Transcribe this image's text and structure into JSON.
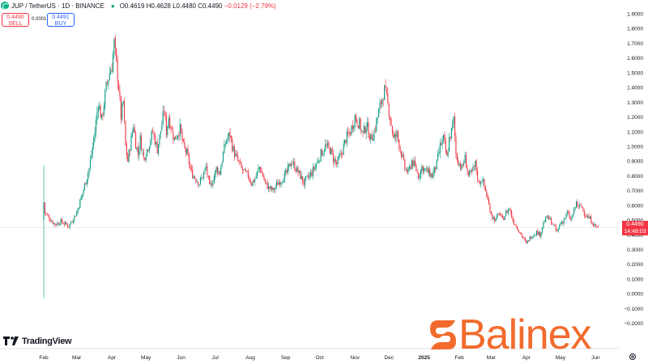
{
  "header": {
    "symbol": "JUP / TetherUS · 1D · BINANCE",
    "ohlc_prefix": "O0.4619 H0.4628 L0.4480 C0.4490",
    "change": "−0.0129 (−2.79%)",
    "market_dot": "●"
  },
  "trade": {
    "sell_price": "0.4490",
    "sell_label": "SELL",
    "spread": "0.0001",
    "buy_price": "0.4491",
    "buy_label": "BUY"
  },
  "price_tag": {
    "price": "0.4490",
    "countdown": "14:48:03"
  },
  "branding": {
    "tradingview": "TradingView",
    "balinex": "Balinex"
  },
  "colors": {
    "up": "#089981",
    "down": "#f23645",
    "brand": "#f26b2d",
    "blue": "#2962ff"
  },
  "icons": {
    "logo": "jup-coin-icon",
    "settings": "gear-icon",
    "tv": "tradingview-logo-icon",
    "balinex": "balinex-logo-icon"
  },
  "chart_data": {
    "type": "candlestick",
    "title": "JUP / TetherUS · 1D · BINANCE",
    "ylim": [
      -0.2,
      1.9
    ],
    "y_ticks": [
      1.9,
      1.8,
      1.7,
      1.6,
      1.5,
      1.4,
      1.3,
      1.2,
      1.1,
      1.0,
      0.9,
      0.8,
      0.7,
      0.6,
      0.5,
      0.4,
      0.3,
      0.2,
      0.1,
      0.0,
      -0.1,
      -0.2
    ],
    "y_tick_labels": [
      "1.9000",
      "1.8000",
      "1.7000",
      "1.6000",
      "1.5000",
      "1.4000",
      "1.3000",
      "1.2000",
      "1.1000",
      "1.0000",
      "0.9000",
      "0.8000",
      "0.7000",
      "0.6000",
      "0.5000",
      "0.4000",
      "0.3000",
      "0.2000",
      "0.1000",
      "0.0000",
      "−0.1000",
      "−0.2000"
    ],
    "x_ticks": [
      {
        "label": "Feb",
        "day": 0
      },
      {
        "label": "Mar",
        "day": 29
      },
      {
        "label": "Apr",
        "day": 60
      },
      {
        "label": "May",
        "day": 90
      },
      {
        "label": "Jun",
        "day": 121
      },
      {
        "label": "Jul",
        "day": 151
      },
      {
        "label": "Aug",
        "day": 182
      },
      {
        "label": "Sep",
        "day": 213
      },
      {
        "label": "Oct",
        "day": 243
      },
      {
        "label": "Nov",
        "day": 274
      },
      {
        "label": "Dec",
        "day": 304
      },
      {
        "label": "2025",
        "day": 335
      },
      {
        "label": "Feb",
        "day": 366
      },
      {
        "label": "Mar",
        "day": 394
      },
      {
        "label": "Apr",
        "day": 425
      },
      {
        "label": "May",
        "day": 455
      },
      {
        "label": "Jun",
        "day": 486
      }
    ],
    "last_price": 0.449,
    "close_anchors": [
      [
        0,
        0.62
      ],
      [
        1,
        0.55
      ],
      [
        4,
        0.52
      ],
      [
        10,
        0.47
      ],
      [
        15,
        0.49
      ],
      [
        22,
        0.46
      ],
      [
        29,
        0.55
      ],
      [
        34,
        0.68
      ],
      [
        40,
        0.85
      ],
      [
        45,
        1.1
      ],
      [
        48,
        1.3
      ],
      [
        51,
        1.18
      ],
      [
        55,
        1.4
      ],
      [
        58,
        1.5
      ],
      [
        60,
        1.55
      ],
      [
        62,
        1.7
      ],
      [
        64,
        1.55
      ],
      [
        66,
        1.4
      ],
      [
        68,
        1.2
      ],
      [
        70,
        1.3
      ],
      [
        72,
        1.0
      ],
      [
        74,
        0.9
      ],
      [
        76,
        1.0
      ],
      [
        79,
        1.15
      ],
      [
        81,
        1.02
      ],
      [
        83,
        0.95
      ],
      [
        85,
        1.05
      ],
      [
        88,
        0.92
      ],
      [
        92,
        1.0
      ],
      [
        96,
        1.1
      ],
      [
        100,
        0.98
      ],
      [
        104,
        1.15
      ],
      [
        106,
        1.25
      ],
      [
        108,
        1.1
      ],
      [
        110,
        1.2
      ],
      [
        113,
        1.1
      ],
      [
        115,
        1.05
      ],
      [
        120,
        1.12
      ],
      [
        123,
        1.0
      ],
      [
        126,
        0.95
      ],
      [
        130,
        0.82
      ],
      [
        134,
        0.78
      ],
      [
        137,
        0.75
      ],
      [
        140,
        0.8
      ],
      [
        143,
        0.86
      ],
      [
        146,
        0.72
      ],
      [
        149,
        0.77
      ],
      [
        152,
        0.85
      ],
      [
        155,
        0.82
      ],
      [
        158,
        0.95
      ],
      [
        161,
        1.05
      ],
      [
        164,
        1.08
      ],
      [
        166,
        1.0
      ],
      [
        168,
        0.95
      ],
      [
        171,
        0.9
      ],
      [
        174,
        0.85
      ],
      [
        177,
        0.82
      ],
      [
        180,
        0.8
      ],
      [
        183,
        0.75
      ],
      [
        186,
        0.78
      ],
      [
        190,
        0.86
      ],
      [
        193,
        0.8
      ],
      [
        195,
        0.75
      ],
      [
        198,
        0.72
      ],
      [
        202,
        0.7
      ],
      [
        206,
        0.75
      ],
      [
        210,
        0.78
      ],
      [
        214,
        0.82
      ],
      [
        218,
        0.9
      ],
      [
        222,
        0.85
      ],
      [
        226,
        0.8
      ],
      [
        229,
        0.75
      ],
      [
        232,
        0.78
      ],
      [
        236,
        0.82
      ],
      [
        240,
        0.88
      ],
      [
        244,
        0.95
      ],
      [
        248,
        1.0
      ],
      [
        252,
        0.98
      ],
      [
        255,
        0.92
      ],
      [
        258,
        0.88
      ],
      [
        262,
        0.95
      ],
      [
        266,
        1.05
      ],
      [
        270,
        1.1
      ],
      [
        274,
        1.2
      ],
      [
        278,
        1.15
      ],
      [
        281,
        1.08
      ],
      [
        284,
        1.15
      ],
      [
        288,
        1.05
      ],
      [
        291,
        1.1
      ],
      [
        294,
        1.2
      ],
      [
        297,
        1.3
      ],
      [
        300,
        1.38
      ],
      [
        302,
        1.32
      ],
      [
        305,
        1.2
      ],
      [
        308,
        1.05
      ],
      [
        311,
        1.08
      ],
      [
        315,
        0.95
      ],
      [
        318,
        0.85
      ],
      [
        321,
        0.82
      ],
      [
        324,
        0.9
      ],
      [
        327,
        0.86
      ],
      [
        330,
        0.8
      ],
      [
        333,
        0.86
      ],
      [
        336,
        0.84
      ],
      [
        339,
        0.82
      ],
      [
        342,
        0.8
      ],
      [
        346,
        0.88
      ],
      [
        349,
        1.0
      ],
      [
        352,
        1.05
      ],
      [
        355,
        0.92
      ],
      [
        357,
        1.05
      ],
      [
        359,
        1.1
      ],
      [
        361,
        1.18
      ],
      [
        363,
        0.95
      ],
      [
        365,
        0.9
      ],
      [
        368,
        0.85
      ],
      [
        371,
        0.92
      ],
      [
        374,
        0.8
      ],
      [
        377,
        0.82
      ],
      [
        380,
        0.88
      ],
      [
        383,
        0.75
      ],
      [
        386,
        0.78
      ],
      [
        389,
        0.7
      ],
      [
        392,
        0.6
      ],
      [
        395,
        0.52
      ],
      [
        398,
        0.5
      ],
      [
        401,
        0.55
      ],
      [
        404,
        0.5
      ],
      [
        407,
        0.55
      ],
      [
        410,
        0.58
      ],
      [
        413,
        0.5
      ],
      [
        416,
        0.46
      ],
      [
        419,
        0.42
      ],
      [
        422,
        0.38
      ],
      [
        425,
        0.34
      ],
      [
        428,
        0.38
      ],
      [
        431,
        0.4
      ],
      [
        434,
        0.42
      ],
      [
        437,
        0.4
      ],
      [
        440,
        0.48
      ],
      [
        443,
        0.52
      ],
      [
        446,
        0.5
      ],
      [
        449,
        0.46
      ],
      [
        452,
        0.42
      ],
      [
        455,
        0.48
      ],
      [
        458,
        0.5
      ],
      [
        461,
        0.55
      ],
      [
        464,
        0.5
      ],
      [
        467,
        0.56
      ],
      [
        469,
        0.62
      ],
      [
        471,
        0.58
      ],
      [
        473,
        0.6
      ],
      [
        476,
        0.55
      ],
      [
        479,
        0.52
      ],
      [
        482,
        0.5
      ],
      [
        484,
        0.47
      ],
      [
        486,
        0.46
      ],
      [
        488,
        0.449
      ]
    ]
  }
}
